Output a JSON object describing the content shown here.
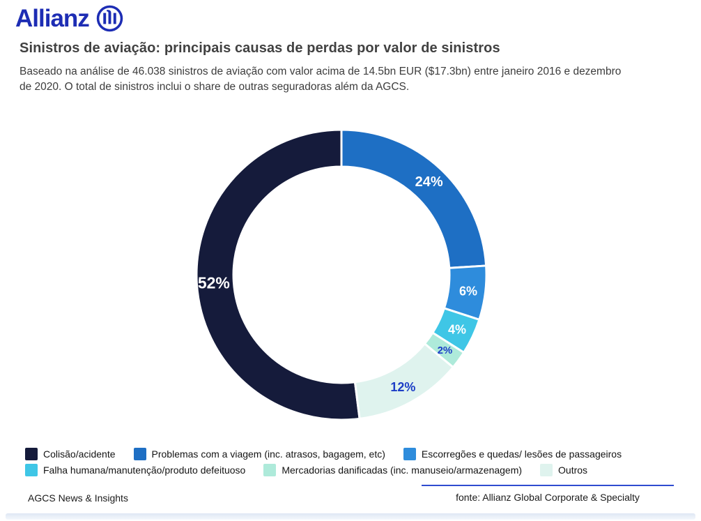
{
  "brand": {
    "wordmark": "Allianz",
    "logo_color": "#1d2db4",
    "logo_icon": "allianz-eagle-circle-icon"
  },
  "header": {
    "title": "Sinistros de aviação: principais causas de perdas por valor de sinistros",
    "subtitle_line1": "Baseado na análise de 46.038 sinistros de aviação com valor acima de 14.5bn EUR ($17.3bn) entre janeiro 2016 e dezembro",
    "subtitle_line2": "de 2020. O total de sinistros inclui o share de outras seguradoras além da AGCS."
  },
  "chart_data": {
    "type": "pie",
    "variant": "donut",
    "start_angle_deg": 172.8,
    "direction": "clockwise",
    "legend_position": "bottom",
    "units": "%",
    "segments": [
      {
        "label": "Colisão/acidente",
        "value": 52,
        "color": "#151b3b",
        "pct_label": "52%",
        "pct_label_color": "#ffffff"
      },
      {
        "label": "Problemas com a viagem (inc. atrasos, bagagem, etc)",
        "value": 24,
        "color": "#1e6fc4",
        "pct_label": "24%",
        "pct_label_color": "#ffffff"
      },
      {
        "label": "Escorregões e quedas/ lesões de passageiros",
        "value": 6,
        "color": "#2e8cdc",
        "pct_label": "6%",
        "pct_label_color": "#ffffff"
      },
      {
        "label": "Falha humana/manutenção/produto defeituoso",
        "value": 4,
        "color": "#3fc6e6",
        "pct_label": "4%",
        "pct_label_color": "#ffffff"
      },
      {
        "label": "Mercadorias danificadas (inc. manuseio/armazenagem)",
        "value": 2,
        "color": "#aeeada",
        "pct_label": "2%",
        "pct_label_color": "#1c3ec6"
      },
      {
        "label": "Outros",
        "value": 12,
        "color": "#dff3ee",
        "pct_label": "12%",
        "pct_label_color": "#1c3ec6"
      }
    ]
  },
  "legend": {
    "rows": [
      [
        0,
        1,
        2
      ],
      [
        3,
        4,
        5
      ]
    ]
  },
  "footer": {
    "left_text": "AGCS News & Insights",
    "source_text": "fonte: Allianz Global Corporate & Specialty",
    "rule_color": "#2f4bd0"
  }
}
